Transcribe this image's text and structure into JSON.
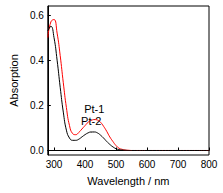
{
  "chart_data": {
    "type": "line",
    "x_label": "Wavelength / nm",
    "y_label": "Absorption",
    "x": [
      280,
      290,
      300,
      310,
      320,
      330,
      340,
      350,
      360,
      370,
      380,
      390,
      400,
      410,
      420,
      430,
      440,
      450,
      460,
      470,
      480,
      490,
      500,
      510,
      520,
      530,
      540,
      550,
      600,
      700,
      800
    ],
    "series": [
      {
        "name": "Pt-1",
        "color": "#ff0000",
        "values": [
          0.5,
          0.57,
          0.58,
          0.52,
          0.42,
          0.3,
          0.19,
          0.11,
          0.075,
          0.07,
          0.08,
          0.095,
          0.11,
          0.125,
          0.133,
          0.137,
          0.135,
          0.125,
          0.107,
          0.085,
          0.06,
          0.04,
          0.022,
          0.01,
          0.005,
          0.002,
          0.001,
          0,
          0,
          0,
          0
        ]
      },
      {
        "name": "Pt-2",
        "color": "#000000",
        "values": [
          0.53,
          0.55,
          0.5,
          0.4,
          0.28,
          0.17,
          0.09,
          0.055,
          0.045,
          0.045,
          0.05,
          0.06,
          0.07,
          0.078,
          0.082,
          0.082,
          0.078,
          0.068,
          0.055,
          0.04,
          0.027,
          0.016,
          0.008,
          0.004,
          0.002,
          0.001,
          0,
          0,
          0,
          0,
          0
        ]
      }
    ],
    "xlim": [
      280,
      800
    ],
    "xticks": [
      300,
      400,
      500,
      600,
      700,
      800
    ],
    "ylim": [
      -0.02,
      0.64
    ],
    "yticks": [
      {
        "value": 0,
        "label": "0.0"
      },
      {
        "value": 0.2,
        "label": "0.2"
      },
      {
        "value": 0.4,
        "label": "0.4"
      },
      {
        "value": 0.6,
        "label": "0.6"
      }
    ],
    "grid": false
  }
}
